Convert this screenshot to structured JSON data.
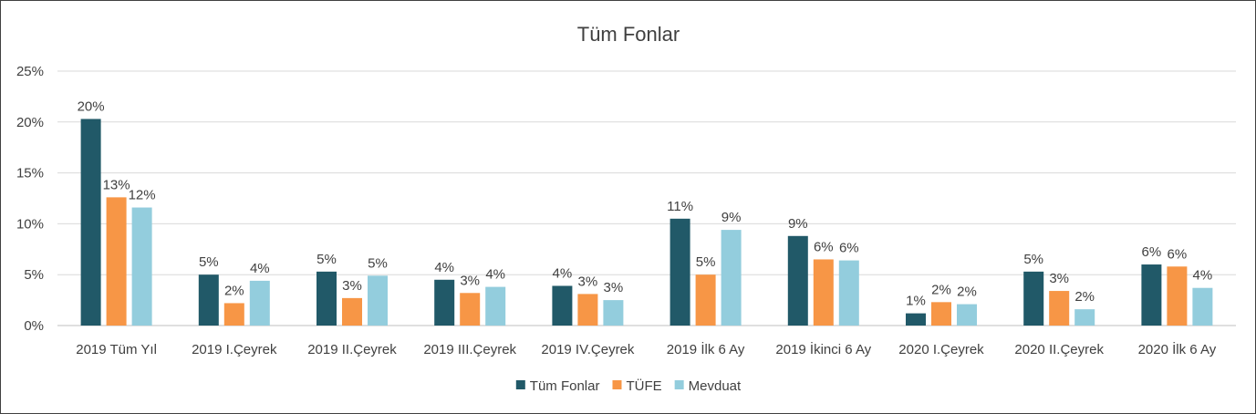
{
  "chart_data": {
    "type": "bar",
    "title": "Tüm Fonlar",
    "xlabel": "",
    "ylabel": "",
    "ylim": [
      0,
      25
    ],
    "yticks": [
      0,
      5,
      10,
      15,
      20,
      25
    ],
    "ytick_labels": [
      "0%",
      "5%",
      "10%",
      "15%",
      "20%",
      "25%"
    ],
    "grid": true,
    "legend_position": "bottom",
    "categories": [
      "2019 Tüm Yıl",
      "2019 I.Çeyrek",
      "2019 II.Çeyrek",
      "2019 III.Çeyrek",
      "2019 IV.Çeyrek",
      "2019 İlk 6 Ay",
      "2019 İkinci 6 Ay",
      "2020 I.Çeyrek",
      "2020 II.Çeyrek",
      "2020 İlk 6 Ay"
    ],
    "series": [
      {
        "name": "Tüm Fonlar",
        "color": "#215968",
        "values": [
          20.3,
          5.0,
          5.3,
          4.5,
          3.9,
          10.5,
          8.8,
          1.2,
          5.3,
          6.0
        ],
        "labels": [
          "20%",
          "5%",
          "5%",
          "4%",
          "4%",
          "11%",
          "9%",
          "1%",
          "5%",
          "6%"
        ]
      },
      {
        "name": "TÜFE",
        "color": "#F79646",
        "values": [
          12.6,
          2.2,
          2.7,
          3.2,
          3.1,
          5.0,
          6.5,
          2.3,
          3.4,
          5.8
        ],
        "labels": [
          "13%",
          "2%",
          "3%",
          "3%",
          "3%",
          "5%",
          "6%",
          "2%",
          "3%",
          "6%"
        ]
      },
      {
        "name": "Mevduat",
        "color": "#93CDDD",
        "values": [
          11.6,
          4.4,
          4.9,
          3.8,
          2.5,
          9.4,
          6.4,
          2.1,
          1.6,
          3.7
        ],
        "labels": [
          "12%",
          "4%",
          "5%",
          "4%",
          "3%",
          "9%",
          "6%",
          "2%",
          "2%",
          "4%"
        ]
      }
    ]
  }
}
